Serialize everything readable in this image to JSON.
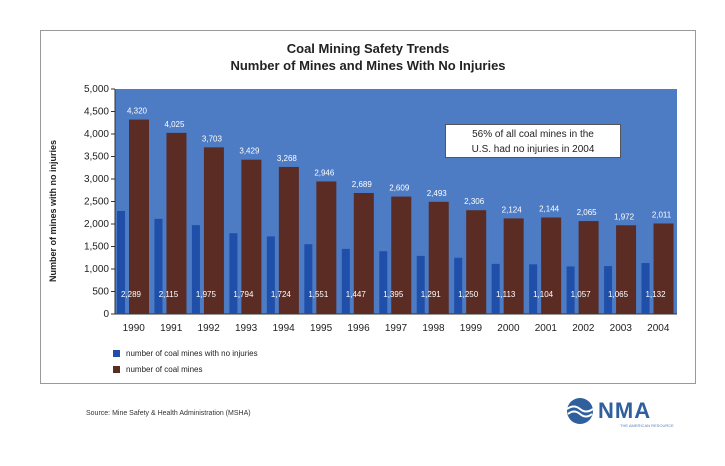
{
  "chart_data": {
    "type": "bar",
    "title": "Coal Mining Safety Trends",
    "subtitle": "Number of Mines and Mines With No Injuries",
    "ylabel": "Number of mines with no injuries",
    "xlabel": "",
    "ylim": [
      0,
      5000
    ],
    "yticks": [
      "0",
      "500",
      "1,000",
      "1,500",
      "2,000",
      "2,500",
      "3,000",
      "3,500",
      "4,000",
      "4,500",
      "5,000"
    ],
    "ytick_values": [
      0,
      500,
      1000,
      1500,
      2000,
      2500,
      3000,
      3500,
      4000,
      4500,
      5000
    ],
    "categories": [
      "1990",
      "1991",
      "1992",
      "1993",
      "1994",
      "1995",
      "1996",
      "1997",
      "1998",
      "1999",
      "2000",
      "2001",
      "2002",
      "2003",
      "2004"
    ],
    "series": [
      {
        "name": "number of coal mines with no injuries",
        "color": "#1f4fa8",
        "values": [
          2289,
          2115,
          1975,
          1794,
          1724,
          1551,
          1447,
          1395,
          1291,
          1250,
          1113,
          1104,
          1057,
          1065,
          1132
        ],
        "labels": [
          "2,289",
          "2,115",
          "1,975",
          "1,794",
          "1,724",
          "1,551",
          "1,447",
          "1,395",
          "1,291",
          "1,250",
          "1,113",
          "1,104",
          "1,057",
          "1,065",
          "1,132"
        ]
      },
      {
        "name": "number of coal mines",
        "color": "#5a2c24",
        "values": [
          4320,
          4025,
          3703,
          3429,
          3268,
          2946,
          2689,
          2609,
          2493,
          2306,
          2124,
          2144,
          2065,
          1972,
          2011
        ],
        "labels": [
          "4,320",
          "4,025",
          "3,703",
          "3,429",
          "3,268",
          "2,946",
          "2,689",
          "2,609",
          "2,493",
          "2,306",
          "2,124",
          "2,144",
          "2,065",
          "1,972",
          "2,011"
        ]
      }
    ],
    "plot_background": "#4d7bc4",
    "grid": false,
    "legend_position": "bottom-left",
    "annotation": {
      "line1": "56% of all coal mines in the",
      "line2": "U.S. had no injuries in 2004"
    }
  },
  "footer": {
    "source": "Source: Mine Safety & Health Administration (MSHA)",
    "logo_text": "NMA",
    "logo_tagline": "THE AMERICAN RESOURCE"
  },
  "logo_icon": "globe-wave-icon"
}
